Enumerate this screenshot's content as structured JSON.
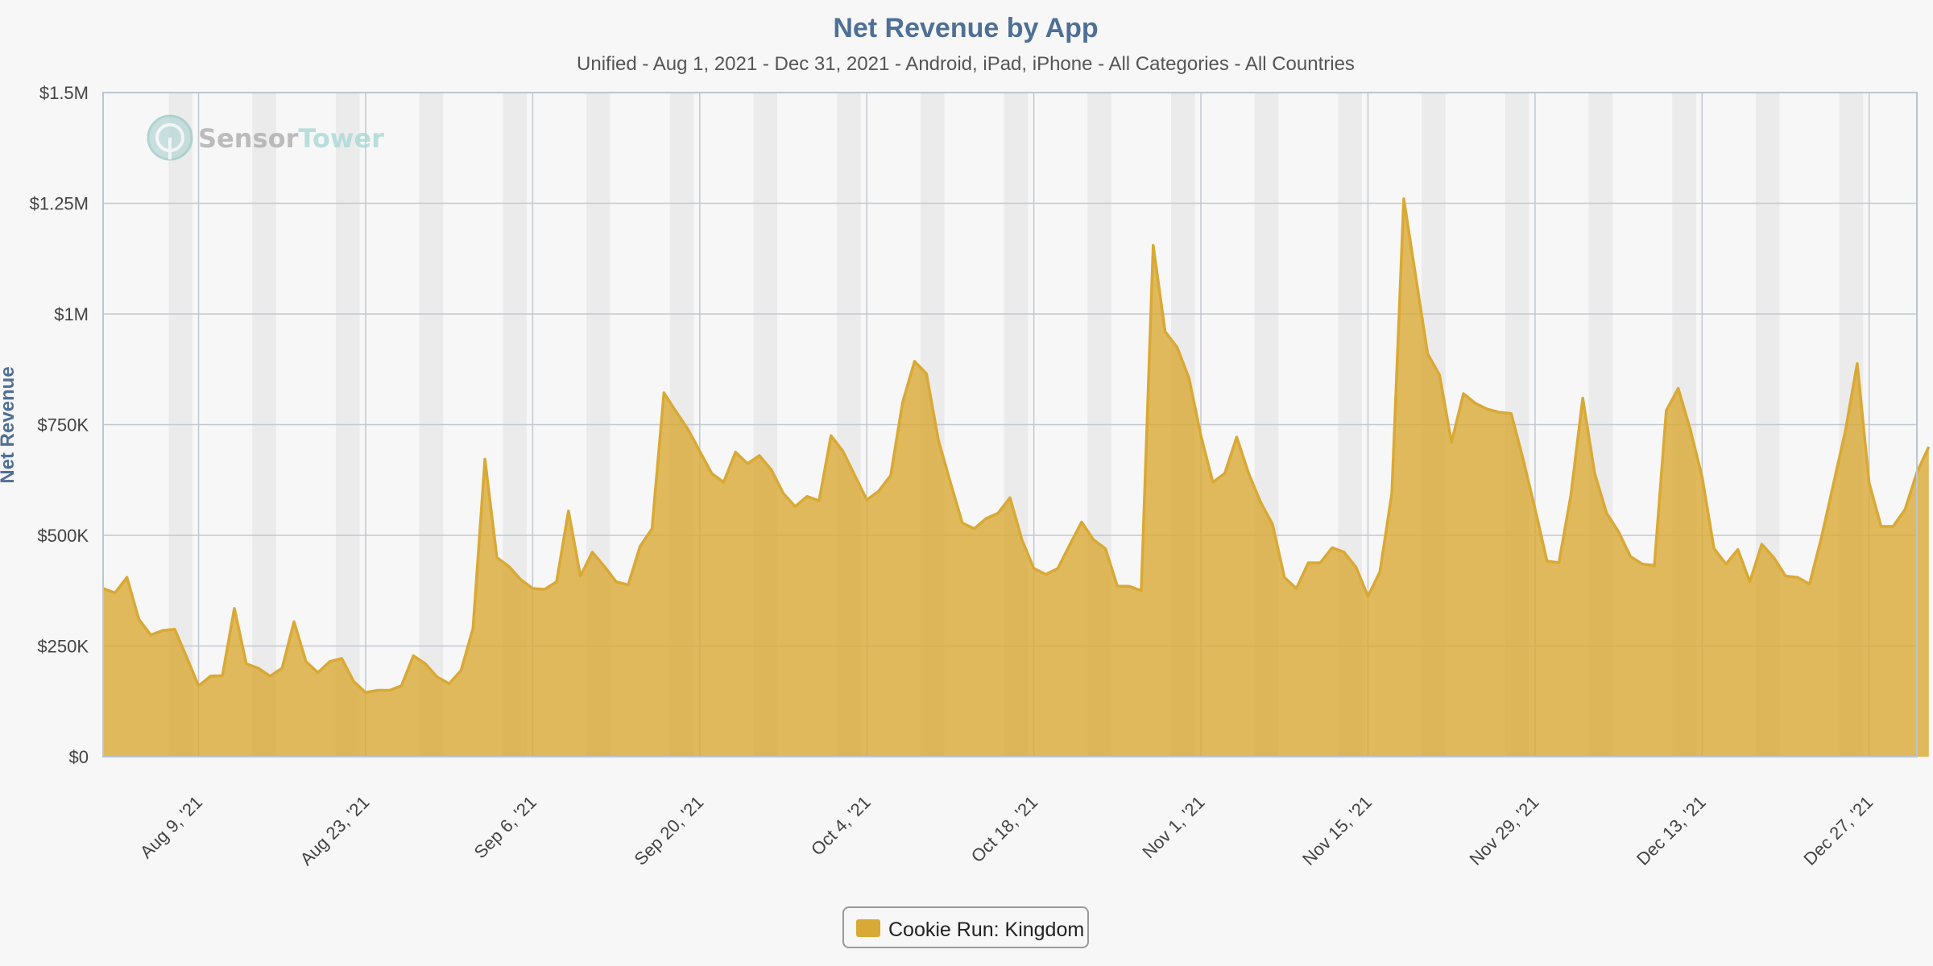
{
  "chart_data": {
    "type": "area",
    "title": "Net Revenue by App",
    "subtitle": "Unified - Aug 1, 2021 - Dec 31, 2021 - Android, iPad, iPhone - All Categories - All Countries",
    "ylabel": "Net Revenue",
    "xlabel": "",
    "ylim": [
      0,
      1500000
    ],
    "yticks": [
      {
        "value": 0,
        "label": "$0"
      },
      {
        "value": 250000,
        "label": "$250K"
      },
      {
        "value": 500000,
        "label": "$500K"
      },
      {
        "value": 750000,
        "label": "$750K"
      },
      {
        "value": 1000000,
        "label": "$1M"
      },
      {
        "value": 1250000,
        "label": "$1.25M"
      },
      {
        "value": 1500000,
        "label": "$1.5M"
      }
    ],
    "x_start": "Aug 1, 2021",
    "x_end": "Dec 31, 2021",
    "xticks": [
      {
        "date": "2021-08-09",
        "label": "Aug 9, '21"
      },
      {
        "date": "2021-08-23",
        "label": "Aug 23, '21"
      },
      {
        "date": "2021-09-06",
        "label": "Sep 6, '21"
      },
      {
        "date": "2021-09-20",
        "label": "Sep 20, '21"
      },
      {
        "date": "2021-10-04",
        "label": "Oct 4, '21"
      },
      {
        "date": "2021-10-18",
        "label": "Oct 18, '21"
      },
      {
        "date": "2021-11-01",
        "label": "Nov 1, '21"
      },
      {
        "date": "2021-11-15",
        "label": "Nov 15, '21"
      },
      {
        "date": "2021-11-29",
        "label": "Nov 29, '21"
      },
      {
        "date": "2021-12-13",
        "label": "Dec 13, '21"
      },
      {
        "date": "2021-12-27",
        "label": "Dec 27, '21"
      }
    ],
    "weekend_shading": true,
    "grid": true,
    "legend": "bottom-center",
    "series": [
      {
        "name": "Cookie Run: Kingdom",
        "color": "#d9a935",
        "values": [
          380000,
          370000,
          405000,
          310000,
          275000,
          285000,
          288000,
          225000,
          160000,
          182000,
          183000,
          335000,
          210000,
          200000,
          182000,
          200000,
          305000,
          215000,
          190000,
          215000,
          222000,
          170000,
          145000,
          150000,
          150000,
          160000,
          228000,
          210000,
          180000,
          165000,
          195000,
          290000,
          672000,
          450000,
          430000,
          400000,
          380000,
          378000,
          395000,
          555000,
          408000,
          462000,
          430000,
          395000,
          388000,
          475000,
          515000,
          822000,
          780000,
          740000,
          690000,
          640000,
          620000,
          688000,
          662000,
          680000,
          648000,
          595000,
          565000,
          588000,
          578000,
          725000,
          690000,
          635000,
          580000,
          600000,
          635000,
          800000,
          893000,
          865000,
          715000,
          620000,
          528000,
          515000,
          538000,
          550000,
          585000,
          490000,
          425000,
          412000,
          425000,
          478000,
          530000,
          490000,
          470000,
          385000,
          385000,
          375000,
          1155000,
          960000,
          925000,
          855000,
          725000,
          620000,
          640000,
          722000,
          640000,
          575000,
          525000,
          405000,
          380000,
          438000,
          438000,
          472000,
          462000,
          428000,
          362000,
          418000,
          595000,
          1260000,
          1085000,
          910000,
          862000,
          710000,
          820000,
          798000,
          785000,
          778000,
          775000,
          672000,
          560000,
          442000,
          438000,
          590000,
          810000,
          640000,
          550000,
          508000,
          452000,
          435000,
          432000,
          782000,
          832000,
          740000,
          632000,
          470000,
          435000,
          468000,
          395000,
          480000,
          450000,
          408000,
          405000,
          390000,
          495000,
          615000,
          735000,
          888000,
          618000,
          520000,
          520000,
          558000,
          642000,
          700000
        ]
      }
    ]
  },
  "watermark": {
    "brand_part1": "Sensor",
    "brand_part2": "Tower"
  }
}
